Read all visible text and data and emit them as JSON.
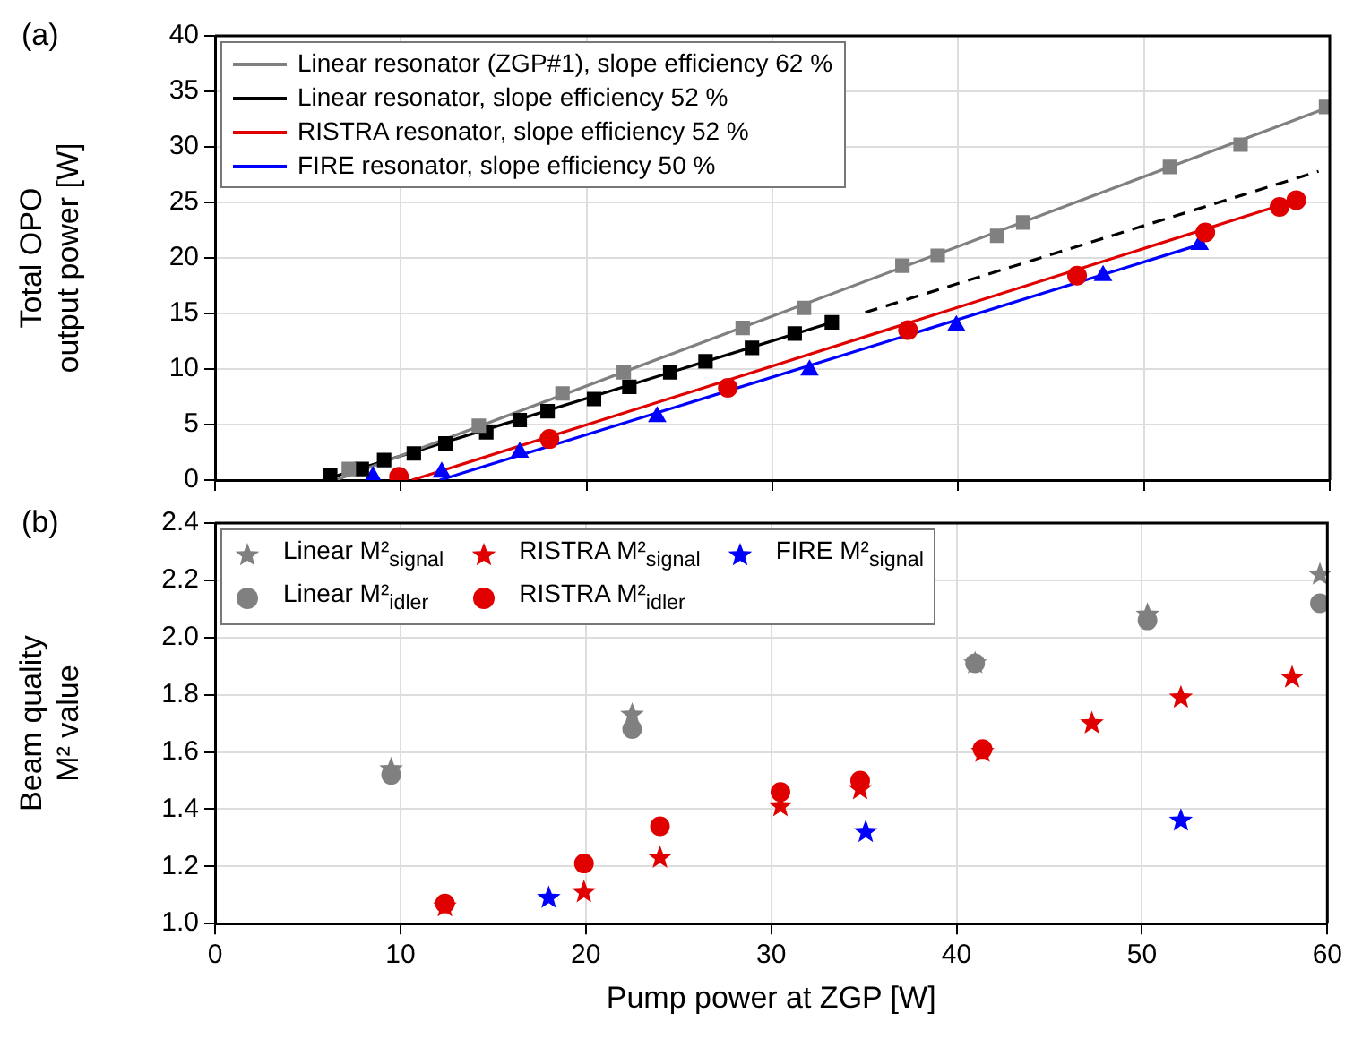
{
  "chart_data": [
    {
      "type": "scatter",
      "annotations": [
        "(a)"
      ],
      "ylabel": "Total OPO output power [W]",
      "xlim": [
        0,
        60
      ],
      "xticks": [
        0,
        10,
        20,
        30,
        40,
        50,
        60
      ],
      "ylim": [
        0,
        40
      ],
      "yticks": [
        0,
        5,
        10,
        15,
        20,
        25,
        30,
        35,
        40
      ],
      "tick_labels": "y",
      "grid": true,
      "legend": "top left",
      "series": [
        {
          "type": "scatter",
          "color": "#808080",
          "marker": "square",
          "x": [
            7.2,
            14.2,
            18.7,
            22.0,
            28.4,
            31.7,
            37.0,
            38.9,
            42.1,
            43.5,
            51.4,
            55.2,
            59.8
          ],
          "values": [
            1.0,
            4.9,
            7.8,
            9.7,
            13.7,
            15.5,
            19.3,
            20.2,
            22.0,
            23.2,
            28.2,
            30.2,
            33.6
          ]
        },
        {
          "type": "scatter",
          "color": "#000000",
          "marker": "square",
          "x": [
            6.2,
            7.9,
            9.1,
            10.7,
            12.4,
            14.6,
            16.4,
            17.9,
            20.4,
            22.3,
            24.5,
            26.4,
            28.9,
            31.2,
            33.2
          ],
          "values": [
            0.4,
            1.0,
            1.8,
            2.4,
            3.3,
            4.3,
            5.4,
            6.2,
            7.3,
            8.4,
            9.7,
            10.7,
            11.9,
            13.2,
            14.2
          ]
        },
        {
          "type": "scatter",
          "color": "#e00000",
          "marker": "circle",
          "x": [
            9.9,
            18.0,
            27.6,
            37.3,
            46.4,
            53.3,
            57.3,
            58.2
          ],
          "values": [
            0.3,
            3.7,
            8.3,
            13.5,
            18.4,
            22.3,
            24.6,
            25.2
          ]
        },
        {
          "type": "scatter",
          "color": "#0000ff",
          "marker": "triangle",
          "x": [
            8.5,
            12.2,
            16.4,
            23.8,
            32.0,
            39.9,
            47.8,
            53.0
          ],
          "values": [
            0.3,
            0.7,
            2.5,
            5.7,
            9.9,
            13.9,
            18.4,
            21.2
          ]
        },
        {
          "type": "line",
          "name": "Linear resonator (ZGP#1), slope efficiency 62 %",
          "color": "#808080",
          "marker": "none",
          "line_style": "solid",
          "x": [
            6.5,
            60
          ],
          "values": [
            0,
            33.6
          ]
        },
        {
          "type": "line",
          "name": "Linear resonator, slope efficiency 52 %",
          "color": "#000000",
          "marker": "none",
          "line_style": "solid",
          "x": [
            5.8,
            33.2
          ],
          "values": [
            0,
            14.2
          ]
        },
        {
          "type": "line",
          "color": "#000000",
          "marker": "none",
          "line_style": "dashed",
          "x": [
            35.0,
            59.4
          ],
          "values": [
            15.1,
            27.8
          ]
        },
        {
          "type": "line",
          "name": "RISTRA resonator, slope efficiency 52 %",
          "color": "#e00000",
          "marker": "none",
          "line_style": "solid",
          "x": [
            10.6,
            58.2
          ],
          "values": [
            0,
            25.2
          ]
        },
        {
          "type": "line",
          "name": "FIRE resonator, slope efficiency 50 %",
          "color": "#0000ff",
          "marker": "none",
          "line_style": "solid",
          "x": [
            12.1,
            53.0
          ],
          "values": [
            0,
            21.2
          ]
        }
      ]
    },
    {
      "type": "scatter",
      "annotations": [
        "(b)"
      ],
      "xlabel": "Pump power at ZGP [W]",
      "ylabel": "Beam quality M² value",
      "xlim": [
        0,
        60
      ],
      "xticks": [
        0,
        10,
        20,
        30,
        40,
        50,
        60
      ],
      "ylim": [
        1.0,
        2.4
      ],
      "yticks": [
        {
          "value": 1.0,
          "label": "1.0"
        },
        {
          "value": 1.2,
          "label": "1.2"
        },
        {
          "value": 1.4,
          "label": "1.4"
        },
        {
          "value": 1.6,
          "label": "1.6"
        },
        {
          "value": 1.8,
          "label": "1.8"
        },
        {
          "value": 2.0,
          "label": "2.0"
        },
        {
          "value": 2.2,
          "label": "2.2"
        },
        {
          "value": 2.4,
          "label": "2.4"
        }
      ],
      "grid": true,
      "legend": "top left",
      "series": [
        {
          "type": "scatter",
          "name": "Linear M²$_{signal}$",
          "color": "#808080",
          "marker": "star",
          "x": [
            9.5,
            22.5,
            41.0,
            50.3,
            59.6
          ],
          "values": [
            1.54,
            1.73,
            1.91,
            2.08,
            2.22
          ]
        },
        {
          "type": "scatter",
          "name": "Linear M²$_{idler}$",
          "color": "#808080",
          "marker": "circle",
          "x": [
            9.5,
            22.5,
            41.0,
            50.3,
            59.6
          ],
          "values": [
            1.52,
            1.68,
            1.91,
            2.06,
            2.12
          ]
        },
        {
          "type": "scatter",
          "name": "RISTRA M²$_{signal}$",
          "color": "#e00000",
          "marker": "star",
          "x": [
            12.4,
            19.9,
            24.0,
            30.5,
            34.8,
            41.4,
            47.3,
            52.1,
            58.1
          ],
          "values": [
            1.06,
            1.11,
            1.23,
            1.41,
            1.47,
            1.6,
            1.7,
            1.79,
            1.86
          ]
        },
        {
          "type": "scatter",
          "name": "RISTRA M²$_{idler}$",
          "color": "#e00000",
          "marker": "circle",
          "x": [
            12.4,
            19.9,
            24.0,
            30.5,
            34.8,
            41.4
          ],
          "values": [
            1.07,
            1.21,
            1.34,
            1.46,
            1.5,
            1.61
          ]
        },
        {
          "type": "scatter",
          "name": "FIRE M²$_{signal}$",
          "color": "#0000ff",
          "marker": "star",
          "x": [
            18.0,
            35.1,
            52.1
          ],
          "values": [
            1.09,
            1.32,
            1.36
          ]
        }
      ]
    }
  ]
}
